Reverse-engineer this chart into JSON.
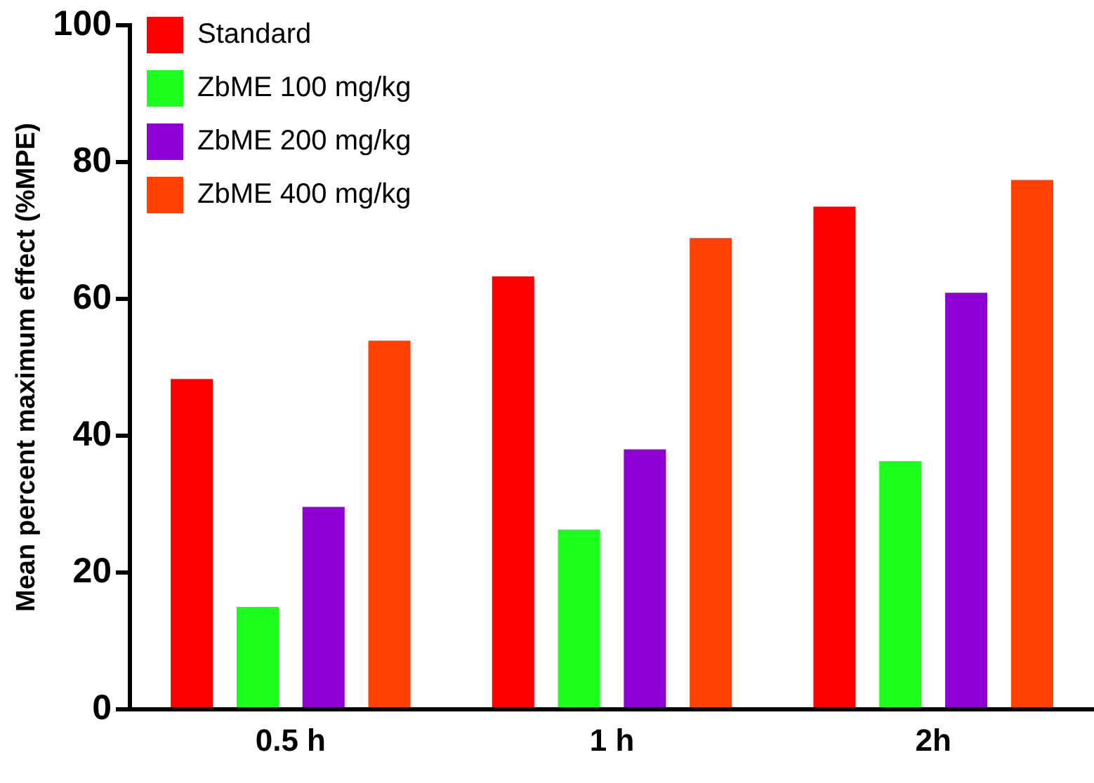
{
  "chart_data": {
    "type": "bar",
    "ylabel": "Mean percent maximum effect (%MPE)",
    "categories": [
      "0.5 h",
      "1 h",
      "2h"
    ],
    "series": [
      {
        "name": "Standard",
        "color": "#ff0000",
        "values": [
          48.3,
          63.3,
          73.5
        ]
      },
      {
        "name": "ZbME 100 mg/kg",
        "color": "#1cff1c",
        "values": [
          15,
          26.3,
          36.3
        ]
      },
      {
        "name": "ZbME 200 mg/kg",
        "color": "#8e00d4",
        "values": [
          29.6,
          38,
          60.9
        ]
      },
      {
        "name": "ZbME 400 mg/kg",
        "color": "#ff4000",
        "values": [
          53.9,
          68.9,
          77.4
        ]
      }
    ],
    "ylim": [
      0,
      100
    ],
    "yticks": [
      0,
      20,
      40,
      60,
      80,
      100
    ],
    "grid": false,
    "legend": "top left"
  }
}
